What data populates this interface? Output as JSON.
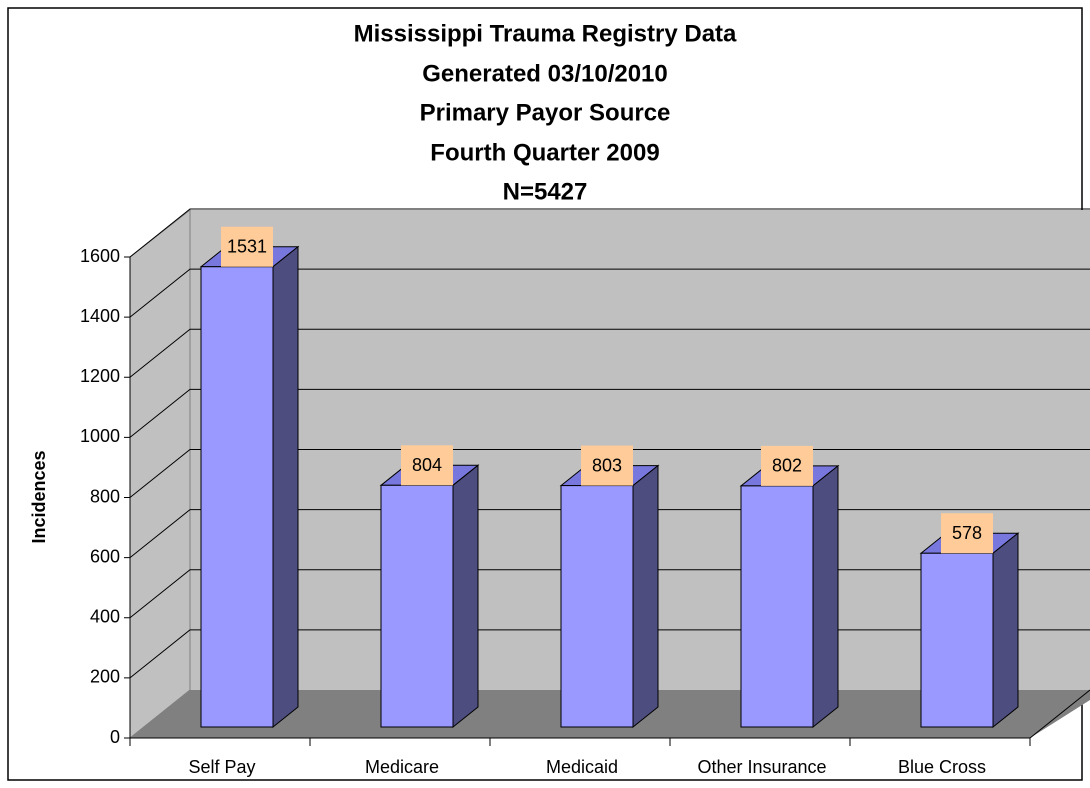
{
  "chart_data": {
    "type": "bar3d",
    "title": [
      "Mississippi Trauma Registry Data",
      "Generated 03/10/2010",
      "Primary Payor Source",
      "Fourth Quarter 2009",
      "N=5427"
    ],
    "y_label": "Incidences",
    "categories": [
      "Self Pay",
      "Medicare",
      "Medicaid",
      "Other Insurance",
      "Blue Cross"
    ],
    "values": [
      1531,
      804,
      803,
      802,
      578
    ],
    "color": "#9999ff",
    "ylim": [
      0,
      1600
    ],
    "yticks": [
      0,
      200,
      400,
      600,
      800,
      1000,
      1200,
      1400,
      1600
    ],
    "grid": true
  }
}
